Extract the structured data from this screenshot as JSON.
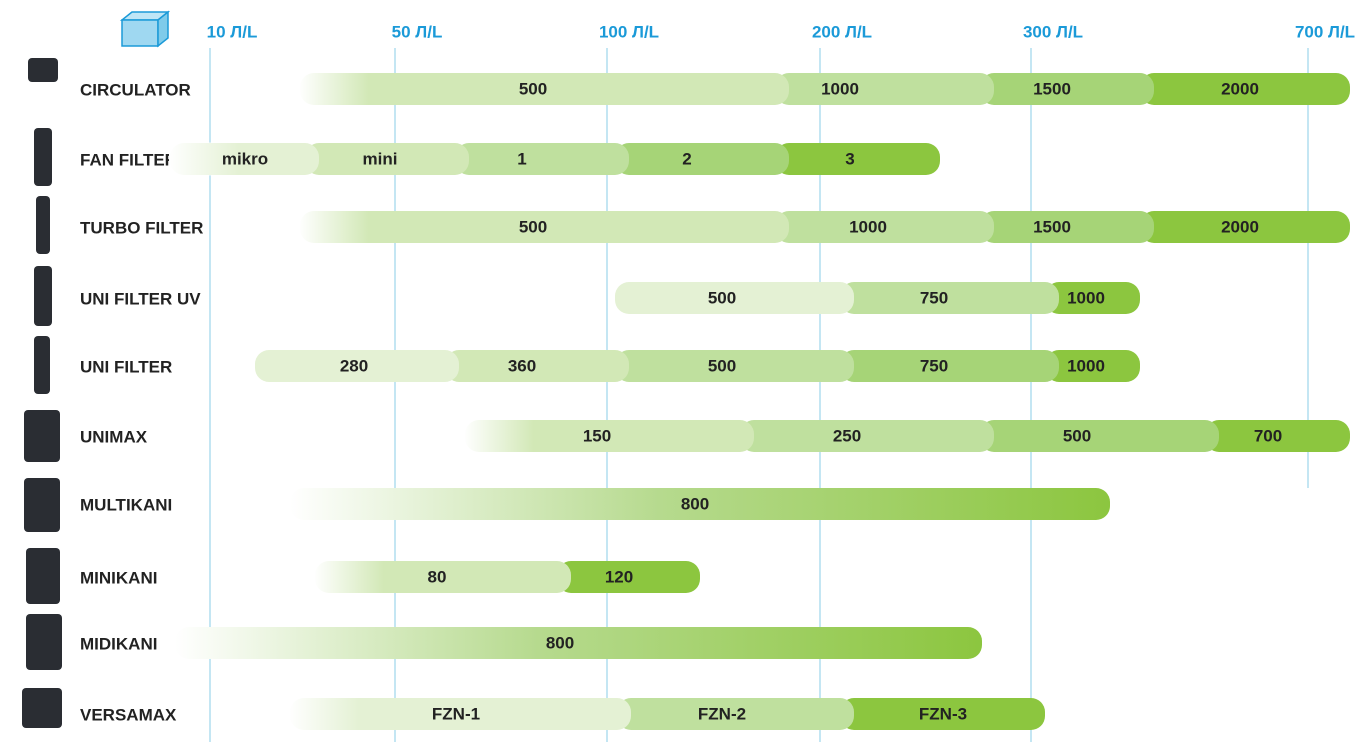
{
  "columns": [
    "10 Л/L",
    "50 Л/L",
    "100 Л/L",
    "200 Л/L",
    "300 Л/L",
    "700 Л/L"
  ],
  "rows": [
    {
      "name": "CIRCULATOR",
      "segments": [
        "500",
        "1000",
        "1500",
        "2000"
      ]
    },
    {
      "name": "FAN FILTER",
      "segments": [
        "mikro",
        "mini",
        "1",
        "2",
        "3"
      ]
    },
    {
      "name": "TURBO FILTER",
      "segments": [
        "500",
        "1000",
        "1500",
        "2000"
      ]
    },
    {
      "name": "UNI FILTER UV",
      "segments": [
        "500",
        "750",
        "1000"
      ]
    },
    {
      "name": "UNI FILTER",
      "segments": [
        "280",
        "360",
        "500",
        "750",
        "1000"
      ]
    },
    {
      "name": "UNIMAX",
      "segments": [
        "150",
        "250",
        "500",
        "700"
      ]
    },
    {
      "name": "MULTIKANI",
      "segments": [
        "800"
      ]
    },
    {
      "name": "MINIKANI",
      "segments": [
        "80",
        "120"
      ]
    },
    {
      "name": "MIDIKANI",
      "segments": [
        "800"
      ]
    },
    {
      "name": "VERSAMAX",
      "segments": [
        "FZN-1",
        "FZN-2",
        "FZN-3"
      ]
    }
  ]
}
